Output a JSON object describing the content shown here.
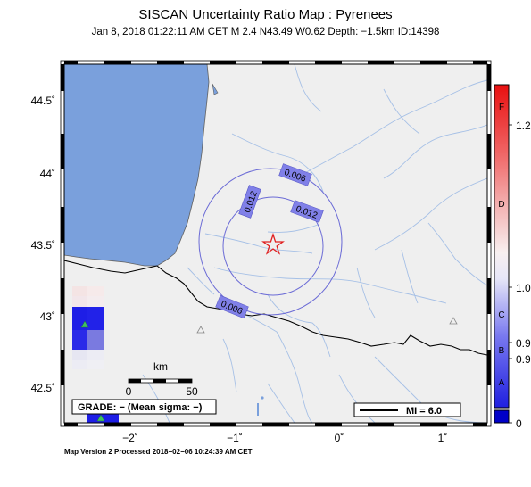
{
  "header": {
    "title": "SISCAN Uncertainty Ratio Map : Pyrenees",
    "subtitle": "Jan  8, 2018 01:22:11 AM CET   M 2.4   N43.49 W0.62   Depth: −1.5km   ID:14398"
  },
  "footer": {
    "version_text": "Map Version 2 Processed 2018−02−06 10:24:39 AM CET"
  },
  "axes": {
    "lon_ticks": [
      "−2˚",
      "−1˚",
      "0˚",
      "1˚"
    ],
    "lat_ticks": [
      "44.5˚",
      "44˚",
      "43.5˚",
      "43˚",
      "42.5˚"
    ]
  },
  "contours": {
    "labels": [
      "0.006",
      "0.012",
      "0.012",
      "0.006"
    ]
  },
  "scale_bar": {
    "unit": "km",
    "start": "0",
    "end": "50"
  },
  "grade_box": {
    "text": "GRADE: − (Mean sigma: −)"
  },
  "mi_box": {
    "text": "MI = 6.0"
  },
  "colorbar": {
    "letters": [
      "F",
      "D",
      "C",
      "B",
      "A"
    ],
    "values": [
      "1.2",
      "1.0",
      "0.9",
      "0.9",
      "0"
    ]
  },
  "colors": {
    "sea": "#7aa0dc",
    "land": "#efefef",
    "rivers": "#a6c0e6",
    "contour": "#6b6bd6",
    "contour_label_bg": "#8080e8",
    "epicenter": "#e02020"
  }
}
